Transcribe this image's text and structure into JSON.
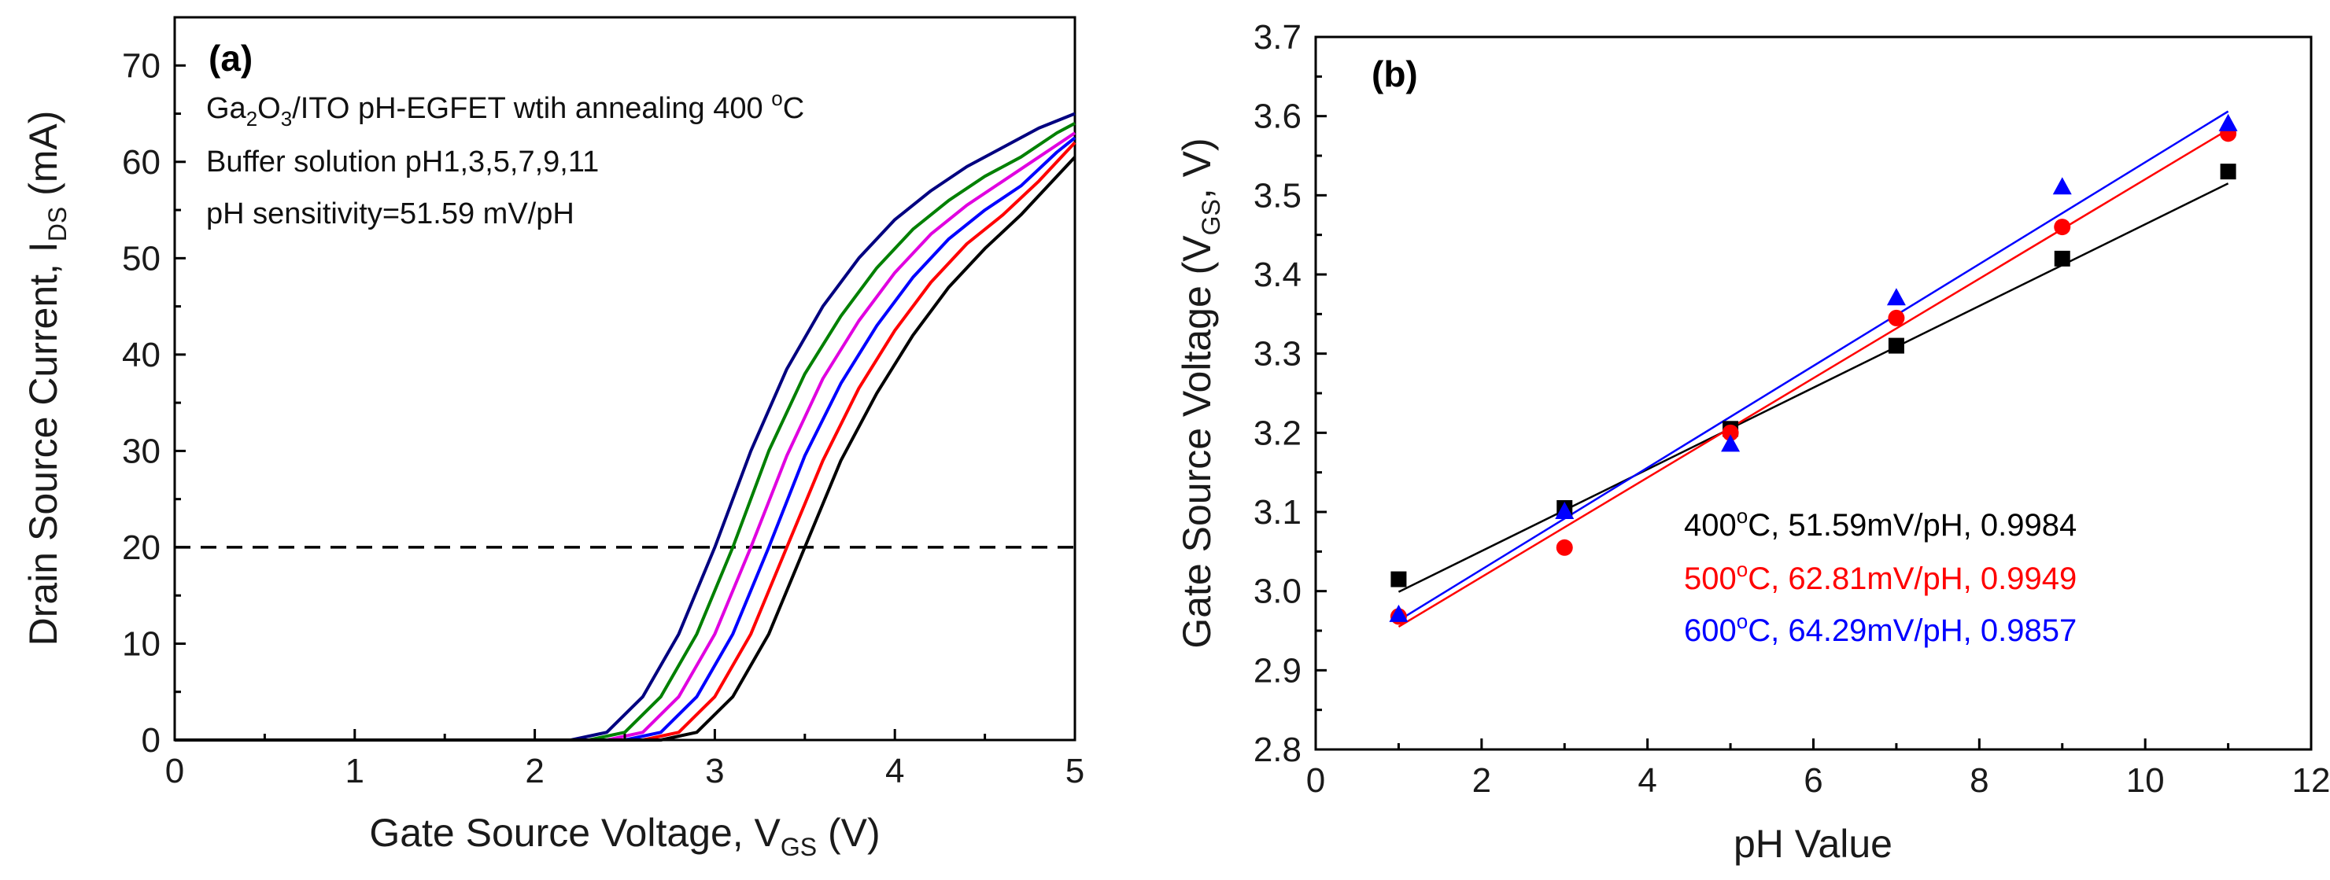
{
  "chart_data": [
    {
      "type": "line",
      "panel_label": "(a)",
      "xlabel": {
        "main": "Gate Source Voltage, V",
        "sub": "GS",
        "post": " (V)"
      },
      "ylabel": {
        "main": "Drain Source Current, I",
        "sub": "DS",
        "post": " (mA)"
      },
      "xlim": [
        0,
        5
      ],
      "ylim": [
        0,
        75
      ],
      "xticks": [
        "0",
        "1",
        "2",
        "3",
        "4",
        "5"
      ],
      "yticks": [
        "0",
        "10",
        "20",
        "30",
        "40",
        "50",
        "60",
        "70"
      ],
      "annotations": {
        "title_parts": [
          "Ga",
          "2",
          "O",
          "3",
          "/ITO pH-EGFET wtih annealing 400 ",
          "o",
          "C"
        ],
        "line2": "Buffer solution pH1,3,5,7,9,11",
        "line3": "pH sensitivity=51.59 mV/pH"
      },
      "reference_line": {
        "y": 20,
        "style": "dashed"
      },
      "series": [
        {
          "name": "pH1",
          "color": "#000080",
          "x": [
            0,
            2.2,
            2.4,
            2.6,
            2.8,
            3.0,
            3.2,
            3.4,
            3.6,
            3.8,
            4.0,
            4.2,
            4.4,
            4.6,
            4.8,
            5.0
          ],
          "values": [
            0,
            0,
            0.8,
            4.5,
            11,
            20,
            30,
            38.5,
            45,
            50,
            54,
            57,
            59.5,
            61.5,
            63.5,
            65
          ]
        },
        {
          "name": "pH3",
          "color": "#008000",
          "x": [
            0,
            2.3,
            2.5,
            2.7,
            2.9,
            3.1,
            3.3,
            3.5,
            3.7,
            3.9,
            4.1,
            4.3,
            4.5,
            4.7,
            4.9,
            5.0
          ],
          "values": [
            0,
            0,
            0.8,
            4.5,
            11,
            20,
            30,
            38,
            44,
            49,
            53,
            56,
            58.5,
            60.5,
            63,
            64
          ]
        },
        {
          "name": "pH5",
          "color": "#e000e0",
          "x": [
            0,
            2.4,
            2.6,
            2.8,
            3.0,
            3.2,
            3.4,
            3.6,
            3.8,
            4.0,
            4.2,
            4.4,
            4.6,
            4.8,
            5.0
          ],
          "values": [
            0,
            0,
            0.8,
            4.5,
            11,
            20,
            29.5,
            37.5,
            43.5,
            48.5,
            52.5,
            55.5,
            58,
            60.5,
            63
          ]
        },
        {
          "name": "pH7",
          "color": "#0000ff",
          "x": [
            0,
            2.5,
            2.7,
            2.9,
            3.1,
            3.3,
            3.5,
            3.7,
            3.9,
            4.1,
            4.3,
            4.5,
            4.7,
            4.9,
            5.0
          ],
          "values": [
            0,
            0,
            0.8,
            4.5,
            11,
            20,
            29.5,
            37,
            43,
            48,
            52,
            55,
            57.5,
            61,
            62.5
          ]
        },
        {
          "name": "pH9",
          "color": "#ff0000",
          "x": [
            0,
            2.6,
            2.8,
            3.0,
            3.2,
            3.4,
            3.6,
            3.8,
            4.0,
            4.2,
            4.4,
            4.6,
            4.8,
            5.0
          ],
          "values": [
            0,
            0,
            0.8,
            4.5,
            11,
            20,
            29,
            36.5,
            42.5,
            47.5,
            51.5,
            54.5,
            58,
            62
          ]
        },
        {
          "name": "pH11",
          "color": "#000000",
          "x": [
            0,
            2.7,
            2.9,
            3.1,
            3.3,
            3.5,
            3.7,
            3.9,
            4.1,
            4.3,
            4.5,
            4.7,
            4.9,
            5.0
          ],
          "values": [
            0,
            0,
            0.8,
            4.5,
            11,
            20,
            29,
            36,
            42,
            47,
            51,
            54.5,
            58.5,
            60.5
          ]
        }
      ]
    },
    {
      "type": "scatter",
      "panel_label": "(b)",
      "xlabel": {
        "main": "pH Value"
      },
      "ylabel": {
        "main": "Gate Source Voltage (V",
        "sub": "GS",
        "post": ", V)"
      },
      "xlim": [
        0,
        12
      ],
      "ylim": [
        2.8,
        3.7
      ],
      "xticks": [
        "0",
        "2",
        "4",
        "6",
        "8",
        "10",
        "12"
      ],
      "yticks": [
        "2.8",
        "2.9",
        "3.0",
        "3.1",
        "3.2",
        "3.3",
        "3.4",
        "3.5",
        "3.6",
        "3.7"
      ],
      "series": [
        {
          "name": "400°C",
          "temp": "400",
          "label_rest": "C, 51.59mV/pH, 0.9984",
          "color": "#000000",
          "marker": "square",
          "x": [
            1,
            3,
            5,
            7,
            9,
            11
          ],
          "values": [
            3.015,
            3.105,
            3.205,
            3.31,
            3.42,
            3.53
          ],
          "fit": [
            2.999,
            3.515
          ]
        },
        {
          "name": "500°C",
          "temp": "500",
          "label_rest": "C, 62.81mV/pH, 0.9949",
          "color": "#ff0000",
          "marker": "circle",
          "x": [
            1,
            3,
            5,
            7,
            9,
            11
          ],
          "values": [
            2.968,
            3.055,
            3.2,
            3.345,
            3.46,
            3.578
          ],
          "fit": [
            2.955,
            3.583
          ]
        },
        {
          "name": "600°C",
          "temp": "600",
          "label_rest": "C, 64.29mV/pH, 0.9857",
          "color": "#0000ff",
          "marker": "triangle",
          "x": [
            1,
            3,
            5,
            7,
            9,
            11
          ],
          "values": [
            2.97,
            3.1,
            3.185,
            3.37,
            3.51,
            3.59
          ],
          "fit": [
            2.963,
            3.606
          ]
        }
      ]
    }
  ]
}
